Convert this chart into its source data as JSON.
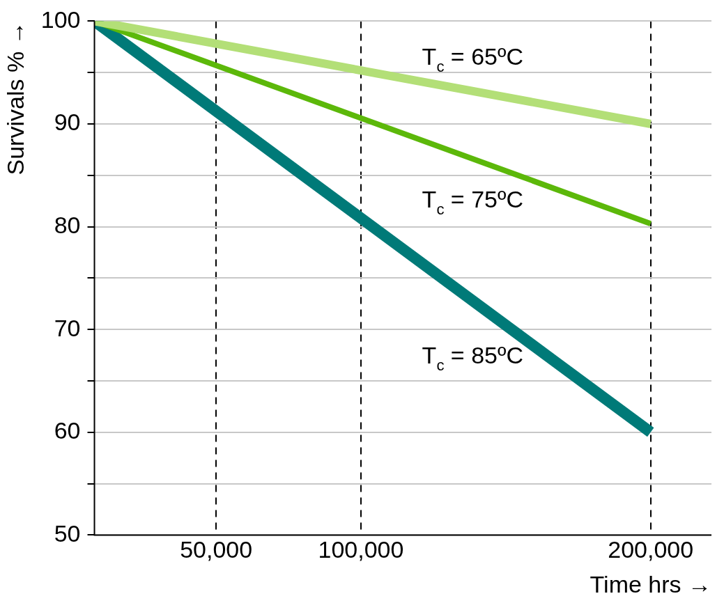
{
  "chart_data": {
    "type": "line",
    "xlabel": "Time hrs →",
    "ylabel": "Survivals % →",
    "x": [
      8000,
      200000
    ],
    "series": [
      {
        "name": "T$_{c}$ = 65ºC",
        "color": "#b3df77",
        "values": [
          100,
          90
        ]
      },
      {
        "name": "T$_{c}$ = 75ºC",
        "color": "#5cb80a",
        "values": [
          100,
          80.3
        ]
      },
      {
        "name": "T$_{c}$ = 85ºC",
        "color": "#007a78",
        "values": [
          100,
          60
        ]
      }
    ],
    "xlim": [
      8000,
      221000
    ],
    "xticks": [
      {
        "value": 50000,
        "label": "50,000"
      },
      {
        "value": 100000,
        "label": "100,000"
      },
      {
        "value": 200000,
        "label": "200,000"
      }
    ],
    "ylim": [
      50,
      100
    ],
    "yticks": [
      50,
      {
        "value": 55,
        "label": null
      },
      60,
      {
        "value": 65,
        "label": null
      },
      70,
      {
        "value": 75,
        "label": null
      },
      80,
      {
        "value": 85,
        "label": null
      },
      90,
      {
        "value": 95,
        "label": null
      },
      100
    ],
    "grid": true,
    "legend": false,
    "marker": "none",
    "line_style": "solid"
  }
}
